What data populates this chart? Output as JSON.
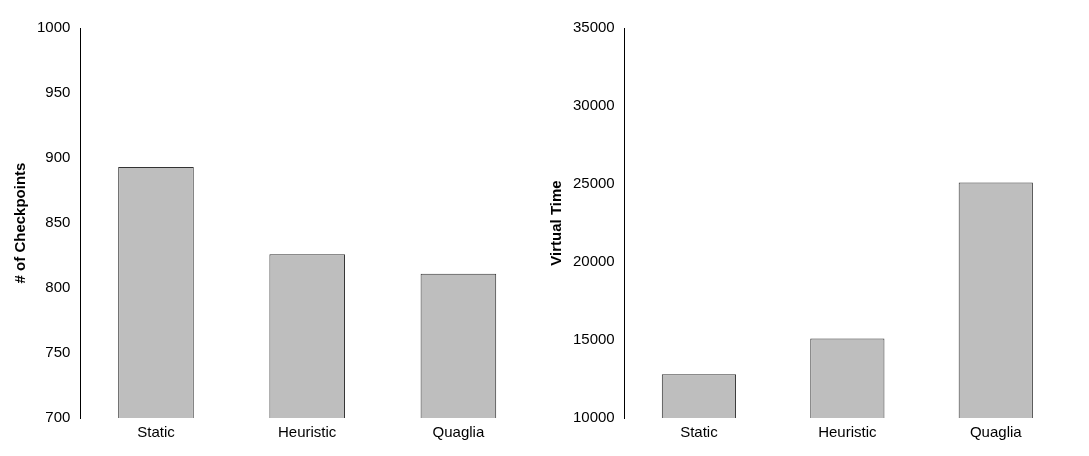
{
  "chart_data": [
    {
      "type": "bar",
      "ylabel": "# of Checkpoints",
      "categories": [
        "Static",
        "Heuristic",
        "Quaglia"
      ],
      "series": [
        {
          "color": "#bebebe",
          "values": [
            893,
            826,
            811
          ]
        }
      ],
      "ylim": [
        700,
        1000
      ],
      "yticks": [
        700,
        750,
        800,
        850,
        900,
        950,
        1000
      ],
      "grid": false,
      "legend": false
    },
    {
      "type": "bar",
      "ylabel": "Virtual Time",
      "categories": [
        "Static",
        "Heuristic",
        "Quaglia"
      ],
      "series": [
        {
          "color": "#bebebe",
          "values": [
            12800,
            15100,
            25100
          ]
        }
      ],
      "ylim": [
        10000,
        35000
      ],
      "yticks": [
        10000,
        15000,
        20000,
        25000,
        30000,
        35000
      ],
      "grid": false,
      "legend": false
    }
  ]
}
